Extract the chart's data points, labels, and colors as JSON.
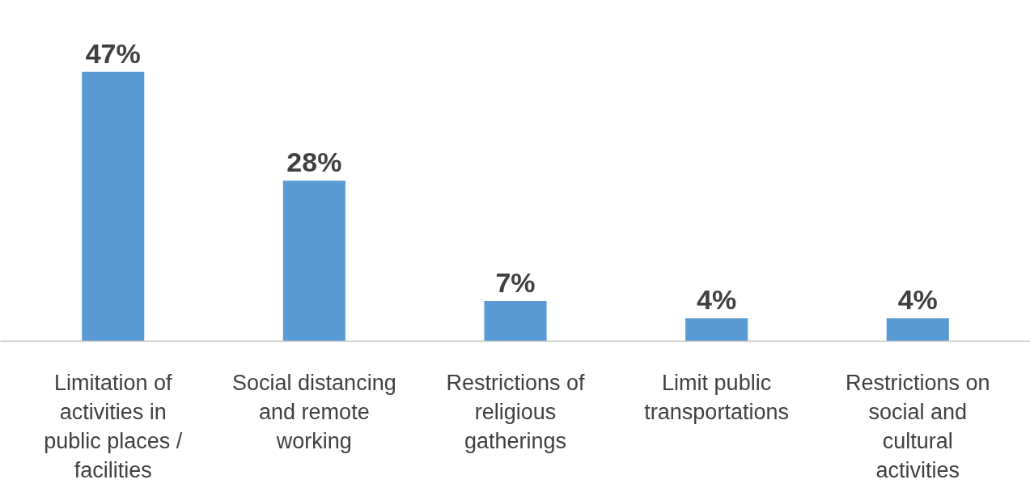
{
  "chart_data": {
    "type": "bar",
    "categories": [
      "Limitation of activities in public places / facilities",
      "Social distancing and remote working",
      "Restrictions of religious gatherings",
      "Limit public transportations",
      "Restrictions on social and cultural activities"
    ],
    "values": [
      47,
      28,
      7,
      4,
      4
    ],
    "color": "#5b9bd5",
    "value_labels": [
      "47%",
      "28%",
      "7%",
      "4%",
      "4%"
    ],
    "grid": false
  }
}
